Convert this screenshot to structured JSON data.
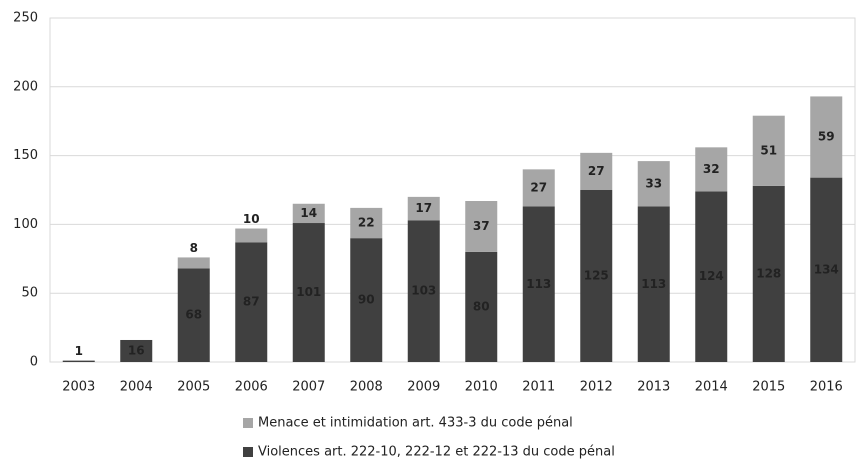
{
  "chart_data": {
    "type": "stacked_bar",
    "categories": [
      "2003",
      "2004",
      "2005",
      "2006",
      "2007",
      "2008",
      "2009",
      "2010",
      "2011",
      "2012",
      "2013",
      "2014",
      "2015",
      "2016"
    ],
    "series": [
      {
        "name": "Violences art. 222-10, 222-12 et 222-13 du code pénal",
        "color": "#404040",
        "label_color": "#ffffff",
        "values": [
          1,
          16,
          68,
          87,
          101,
          90,
          103,
          80,
          113,
          125,
          113,
          124,
          128,
          134
        ]
      },
      {
        "name": "Menace et intimidation art. 433-3 du code pénal",
        "color": "#a6a6a6",
        "label_color": "#111111",
        "values": [
          null,
          null,
          8,
          10,
          14,
          22,
          17,
          37,
          27,
          27,
          33,
          32,
          51,
          59
        ]
      }
    ],
    "ylim": [
      0,
      250
    ],
    "yticks": [
      0,
      50,
      100,
      150,
      200,
      250
    ],
    "grid": true,
    "legend": "bottom"
  }
}
